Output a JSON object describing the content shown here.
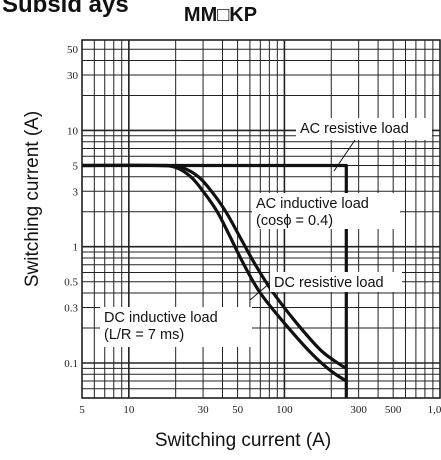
{
  "heading_fragment": "Subsid   ays",
  "chart_data": {
    "type": "line",
    "title": "MM□KP",
    "xlabel": "Switching current (A)",
    "ylabel": "Switching current (A)",
    "x_scale": "log",
    "y_scale": "log",
    "xlim": [
      5,
      1000
    ],
    "ylim": [
      0.05,
      60
    ],
    "x_ticks": [
      5,
      10,
      30,
      50,
      100,
      300,
      500,
      1000
    ],
    "x_tick_labels": [
      "5",
      "10",
      "30",
      "50",
      "100",
      "300",
      "500",
      "1,000"
    ],
    "y_ticks": [
      0.1,
      0.3,
      0.5,
      1,
      3,
      5,
      10,
      30,
      50
    ],
    "y_tick_labels": [
      "0.1",
      "0.3",
      "0.5",
      "1",
      "3",
      "5",
      "10",
      "30",
      "50"
    ],
    "grid": true,
    "series": [
      {
        "id": "dc-inductive",
        "x": [
          5,
          15,
          20,
          25,
          30,
          37,
          45,
          55,
          70,
          100,
          150,
          200,
          250
        ],
        "y": [
          5,
          5,
          4.8,
          4.0,
          3.0,
          2.0,
          1.2,
          0.7,
          0.4,
          0.22,
          0.12,
          0.085,
          0.07
        ]
      },
      {
        "id": "dc-resistive",
        "x": [
          5,
          17,
          22,
          28,
          34,
          42,
          52,
          65,
          85,
          120,
          170,
          220,
          250
        ],
        "y": [
          5,
          5,
          4.8,
          4.0,
          3.0,
          2.0,
          1.2,
          0.7,
          0.4,
          0.22,
          0.13,
          0.1,
          0.09
        ]
      },
      {
        "id": "ac-limit",
        "x": [
          5,
          250,
          250
        ],
        "y": [
          5,
          5,
          0.05
        ]
      }
    ],
    "annotations": [
      {
        "id": "ac-resistive",
        "lines": [
          "AC resistive load"
        ]
      },
      {
        "id": "ac-inductive",
        "lines": [
          "AC inductive load",
          "(cosϕ = 0.4)"
        ]
      },
      {
        "id": "dc-resistive",
        "lines": [
          "DC resistive load"
        ]
      },
      {
        "id": "dc-inductive",
        "lines": [
          "DC inductive load",
          "(L/R = 7 ms)"
        ]
      }
    ]
  }
}
